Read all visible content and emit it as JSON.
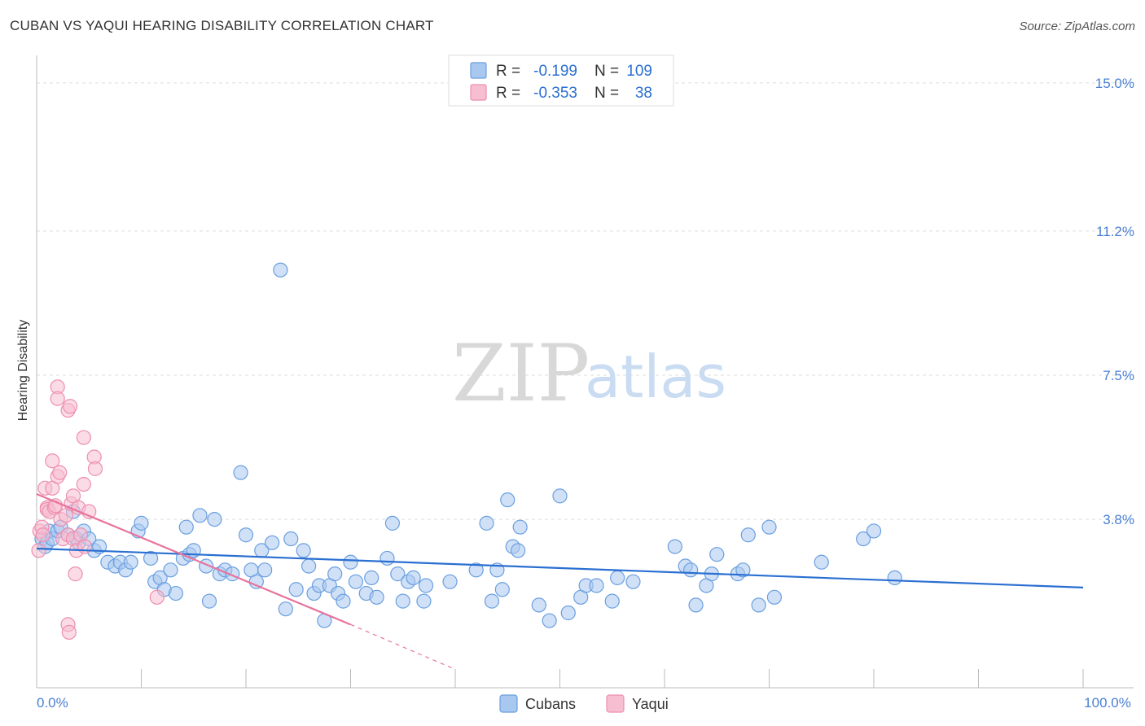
{
  "header": {
    "title": "CUBAN VS YAQUI HEARING DISABILITY CORRELATION CHART",
    "source": "Source: ZipAtlas.com"
  },
  "watermark": {
    "zip": "ZIP",
    "atlas": "atlas"
  },
  "legend": {
    "rows": [
      {
        "r_label": "R =",
        "r_value": "-0.199",
        "n_label": "N =",
        "n_value": "109",
        "color": "#a9c8f0",
        "stroke": "#6a9fe0"
      },
      {
        "r_label": "R =",
        "r_value": "-0.353",
        "n_label": "N =",
        "n_value": "38",
        "color": "#f7bdd0",
        "stroke": "#ec8fb0"
      }
    ]
  },
  "bottom_legend": [
    {
      "label": "Cubans",
      "color": "#a9c8f0",
      "stroke": "#6a9fe0"
    },
    {
      "label": "Yaqui",
      "color": "#f7bdd0",
      "stroke": "#ec8fb0"
    }
  ],
  "chart_data": {
    "type": "scatter",
    "title": "CUBAN VS YAQUI HEARING DISABILITY CORRELATION CHART",
    "xlabel": "",
    "ylabel": "Hearing Disability",
    "xlim": [
      0,
      100
    ],
    "ylim": [
      0,
      15.5
    ],
    "x_tick_labels": [
      {
        "value": 0,
        "label": "0.0%"
      },
      {
        "value": 100,
        "label": "100.0%"
      }
    ],
    "y_tick_labels": [
      {
        "value": 3.8,
        "label": "3.8%"
      },
      {
        "value": 7.5,
        "label": "7.5%"
      },
      {
        "value": 11.2,
        "label": "11.2%"
      },
      {
        "value": 15.0,
        "label": "15.0%"
      }
    ],
    "x_minor_ticks": [
      0,
      10,
      20,
      30,
      40,
      50,
      60,
      70,
      80,
      90,
      100
    ],
    "grid": true,
    "series": [
      {
        "name": "Cubans",
        "color": "#a9c8f0",
        "stroke": "#6a9fe0",
        "trend": {
          "x": [
            0,
            100
          ],
          "y": [
            3.05,
            2.05
          ],
          "color": "#2a6fd1"
        },
        "points": [
          [
            0.5,
            3.3
          ],
          [
            0.8,
            3.1
          ],
          [
            1.0,
            3.2
          ],
          [
            1.2,
            3.5
          ],
          [
            1.5,
            3.3
          ],
          [
            2.0,
            3.5
          ],
          [
            2.3,
            3.6
          ],
          [
            3.0,
            3.4
          ],
          [
            3.5,
            4.0
          ],
          [
            3.8,
            3.3
          ],
          [
            4.0,
            3.2
          ],
          [
            4.5,
            3.5
          ],
          [
            5.0,
            3.3
          ],
          [
            5.5,
            3.0
          ],
          [
            6.0,
            3.1
          ],
          [
            6.8,
            2.7
          ],
          [
            7.5,
            2.6
          ],
          [
            8.0,
            2.7
          ],
          [
            8.5,
            2.5
          ],
          [
            9.0,
            2.7
          ],
          [
            9.7,
            3.5
          ],
          [
            10.0,
            3.7
          ],
          [
            10.9,
            2.8
          ],
          [
            11.3,
            2.2
          ],
          [
            11.8,
            2.3
          ],
          [
            12.2,
            2.0
          ],
          [
            12.8,
            2.5
          ],
          [
            13.3,
            1.9
          ],
          [
            14.0,
            2.8
          ],
          [
            14.3,
            3.6
          ],
          [
            14.6,
            2.9
          ],
          [
            15.0,
            3.0
          ],
          [
            15.6,
            3.9
          ],
          [
            16.2,
            2.6
          ],
          [
            16.5,
            1.7
          ],
          [
            17.0,
            3.8
          ],
          [
            17.5,
            2.4
          ],
          [
            18.0,
            2.5
          ],
          [
            18.7,
            2.4
          ],
          [
            19.5,
            5.0
          ],
          [
            20.0,
            3.4
          ],
          [
            20.5,
            2.5
          ],
          [
            21.0,
            2.2
          ],
          [
            21.5,
            3.0
          ],
          [
            21.8,
            2.5
          ],
          [
            22.5,
            3.2
          ],
          [
            23.3,
            10.2
          ],
          [
            23.8,
            1.5
          ],
          [
            24.3,
            3.3
          ],
          [
            24.8,
            2.0
          ],
          [
            25.5,
            3.0
          ],
          [
            26.0,
            2.6
          ],
          [
            26.5,
            1.9
          ],
          [
            27.0,
            2.1
          ],
          [
            27.5,
            1.2
          ],
          [
            28.0,
            2.1
          ],
          [
            28.5,
            2.4
          ],
          [
            28.8,
            1.9
          ],
          [
            29.3,
            1.7
          ],
          [
            30.0,
            2.7
          ],
          [
            30.5,
            2.2
          ],
          [
            31.5,
            1.9
          ],
          [
            32.0,
            2.3
          ],
          [
            32.5,
            1.8
          ],
          [
            33.5,
            2.8
          ],
          [
            34.0,
            3.7
          ],
          [
            34.5,
            2.4
          ],
          [
            35.0,
            1.7
          ],
          [
            35.5,
            2.2
          ],
          [
            36.0,
            2.3
          ],
          [
            37.0,
            1.7
          ],
          [
            37.2,
            2.1
          ],
          [
            39.5,
            2.2
          ],
          [
            42.0,
            2.5
          ],
          [
            43.0,
            3.7
          ],
          [
            43.5,
            1.7
          ],
          [
            44.0,
            2.5
          ],
          [
            44.5,
            2.0
          ],
          [
            45.0,
            4.3
          ],
          [
            45.5,
            3.1
          ],
          [
            46.0,
            3.0
          ],
          [
            46.2,
            3.6
          ],
          [
            48.0,
            1.6
          ],
          [
            49.0,
            1.2
          ],
          [
            50.0,
            4.4
          ],
          [
            50.8,
            1.4
          ],
          [
            52.0,
            1.8
          ],
          [
            52.5,
            2.1
          ],
          [
            53.5,
            2.1
          ],
          [
            55.0,
            1.7
          ],
          [
            55.5,
            2.3
          ],
          [
            57.0,
            2.2
          ],
          [
            61.0,
            3.1
          ],
          [
            62.0,
            2.6
          ],
          [
            62.5,
            2.5
          ],
          [
            63.0,
            1.6
          ],
          [
            64.0,
            2.1
          ],
          [
            64.5,
            2.4
          ],
          [
            65.0,
            2.9
          ],
          [
            67.0,
            2.4
          ],
          [
            67.5,
            2.5
          ],
          [
            68.0,
            3.4
          ],
          [
            69.0,
            1.6
          ],
          [
            70.0,
            3.6
          ],
          [
            70.5,
            1.8
          ],
          [
            75.0,
            2.7
          ],
          [
            79.0,
            3.3
          ],
          [
            80.0,
            3.5
          ],
          [
            82.0,
            2.3
          ]
        ]
      },
      {
        "name": "Yaqui",
        "color": "#f7bdd0",
        "stroke": "#ec8fb0",
        "trend": {
          "x": [
            0,
            30
          ],
          "y": [
            4.45,
            1.1
          ],
          "color": "#e8739c",
          "dashed_extension": {
            "x": [
              30,
              40
            ],
            "y": [
              1.1,
              -0.05
            ]
          }
        },
        "points": [
          [
            0.2,
            3.0
          ],
          [
            0.3,
            3.5
          ],
          [
            0.5,
            3.6
          ],
          [
            0.6,
            3.4
          ],
          [
            0.8,
            4.6
          ],
          [
            1.0,
            4.1
          ],
          [
            1.0,
            4.05
          ],
          [
            1.2,
            4.0
          ],
          [
            1.5,
            4.6
          ],
          [
            1.5,
            5.3
          ],
          [
            1.7,
            4.1
          ],
          [
            1.8,
            4.15
          ],
          [
            2.0,
            4.9
          ],
          [
            2.0,
            7.2
          ],
          [
            2.0,
            6.9
          ],
          [
            2.2,
            5.0
          ],
          [
            2.3,
            3.8
          ],
          [
            2.5,
            3.3
          ],
          [
            2.8,
            3.9
          ],
          [
            3.0,
            3.4
          ],
          [
            3.0,
            1.1
          ],
          [
            3.0,
            6.6
          ],
          [
            3.1,
            0.9
          ],
          [
            3.2,
            6.7
          ],
          [
            3.3,
            4.2
          ],
          [
            3.5,
            4.4
          ],
          [
            3.5,
            3.3
          ],
          [
            3.7,
            2.4
          ],
          [
            3.8,
            3.0
          ],
          [
            4.0,
            4.1
          ],
          [
            4.2,
            3.4
          ],
          [
            4.5,
            5.9
          ],
          [
            4.5,
            4.7
          ],
          [
            4.6,
            3.1
          ],
          [
            5.0,
            4.0
          ],
          [
            5.5,
            5.4
          ],
          [
            5.6,
            5.1
          ],
          [
            11.5,
            1.8
          ]
        ]
      }
    ]
  }
}
